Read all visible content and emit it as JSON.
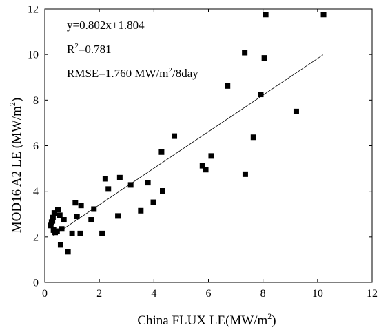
{
  "chart_data": {
    "type": "scatter",
    "title": "",
    "xlabel": {
      "main": "China FLUX  LE(MW/m",
      "sup": "2",
      "close": ")"
    },
    "ylabel": {
      "main": "MOD16 A2  LE (MW/m",
      "sup": "2",
      "close": ")"
    },
    "xlim": [
      0,
      12
    ],
    "ylim": [
      0,
      12
    ],
    "xticks": [
      0,
      2,
      4,
      6,
      8,
      10,
      12
    ],
    "yticks": [
      0,
      2,
      4,
      6,
      8,
      10,
      12
    ],
    "grid": false,
    "marker": "square",
    "marker_color": "#000000",
    "annotations": {
      "equation": "y=0.802x+1.804",
      "r2": {
        "base": "R",
        "sup": "2",
        "rest": "=0.781"
      },
      "rmse": {
        "main": "RMSE=1.760 MW/m",
        "sup": "2",
        "rest": "/8day"
      }
    },
    "fit_line": {
      "slope": 0.802,
      "intercept": 1.804,
      "x_range": [
        0.3,
        10.2
      ]
    },
    "points": [
      [
        0.22,
        2.5
      ],
      [
        0.25,
        2.65
      ],
      [
        0.28,
        2.7
      ],
      [
        0.3,
        2.85
      ],
      [
        0.35,
        3.05
      ],
      [
        0.32,
        2.3
      ],
      [
        0.38,
        2.2
      ],
      [
        0.45,
        2.25
      ],
      [
        0.48,
        3.2
      ],
      [
        0.55,
        2.95
      ],
      [
        0.62,
        2.35
      ],
      [
        0.7,
        2.75
      ],
      [
        0.58,
        1.65
      ],
      [
        0.85,
        1.35
      ],
      [
        1.0,
        2.15
      ],
      [
        1.12,
        3.5
      ],
      [
        1.18,
        2.9
      ],
      [
        1.3,
        2.15
      ],
      [
        1.33,
        3.38
      ],
      [
        1.7,
        2.75
      ],
      [
        1.8,
        3.22
      ],
      [
        2.1,
        2.15
      ],
      [
        2.22,
        4.55
      ],
      [
        2.33,
        4.1
      ],
      [
        2.68,
        2.92
      ],
      [
        2.75,
        4.6
      ],
      [
        3.15,
        4.28
      ],
      [
        3.52,
        3.15
      ],
      [
        3.78,
        4.38
      ],
      [
        3.98,
        3.52
      ],
      [
        4.28,
        5.72
      ],
      [
        4.32,
        4.02
      ],
      [
        4.75,
        6.42
      ],
      [
        5.78,
        5.12
      ],
      [
        5.9,
        4.95
      ],
      [
        6.1,
        5.55
      ],
      [
        6.7,
        8.62
      ],
      [
        7.33,
        10.08
      ],
      [
        7.35,
        4.75
      ],
      [
        7.65,
        6.37
      ],
      [
        7.92,
        8.25
      ],
      [
        8.05,
        9.85
      ],
      [
        8.1,
        11.75
      ],
      [
        9.22,
        7.5
      ],
      [
        10.22,
        11.75
      ]
    ]
  }
}
